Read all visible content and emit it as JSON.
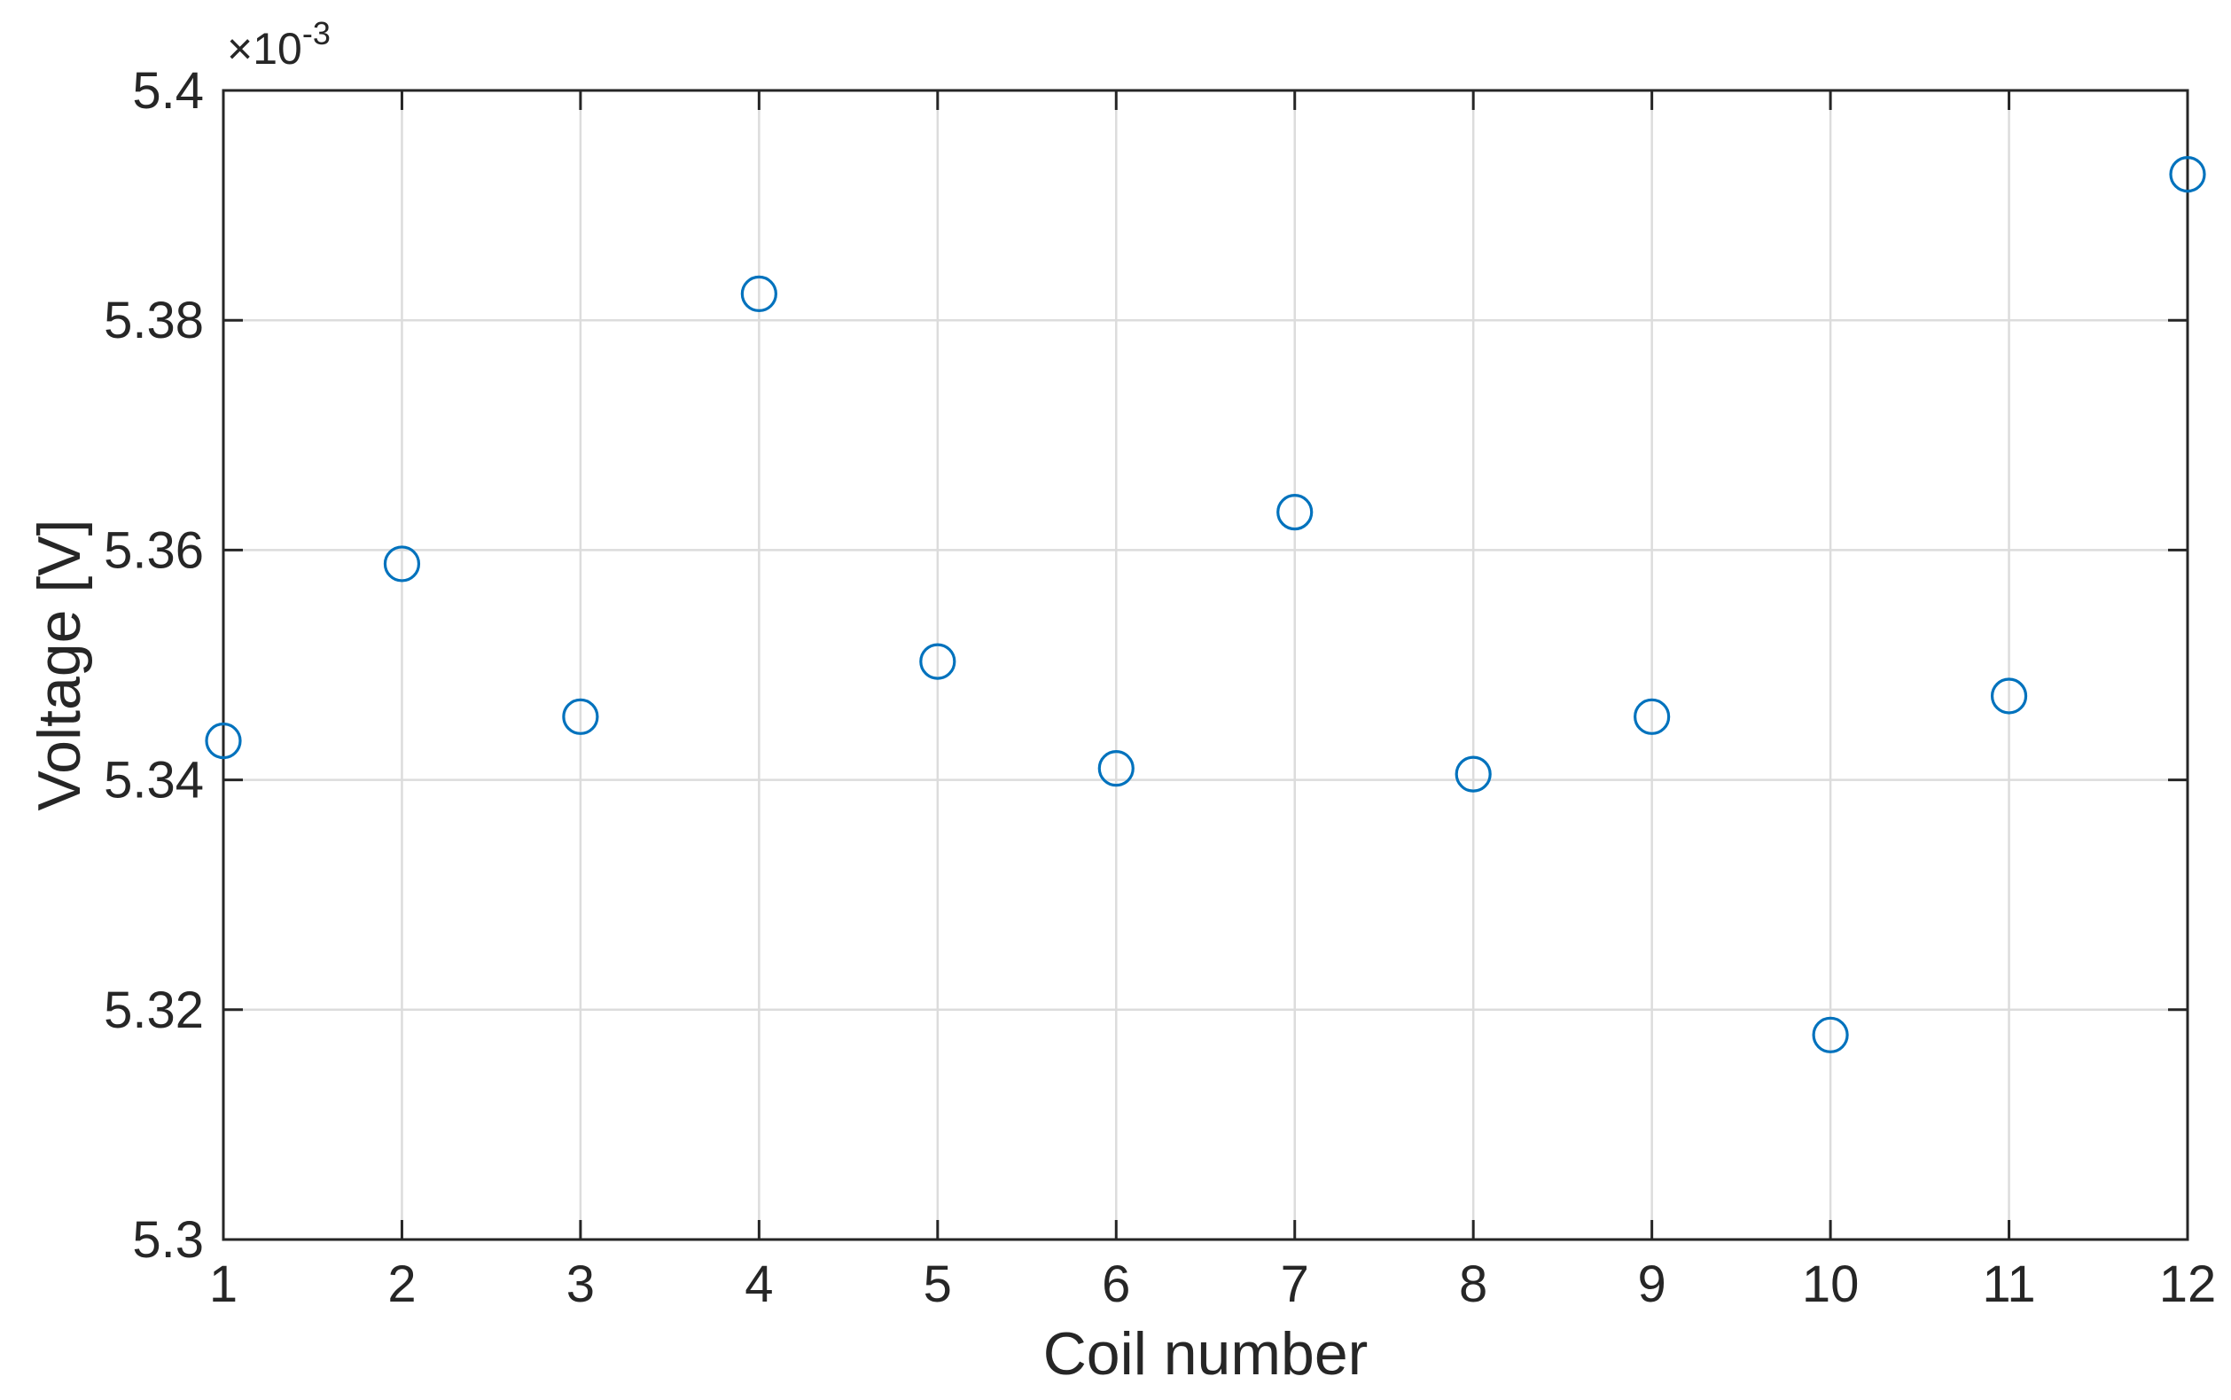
{
  "chart_data": {
    "type": "scatter",
    "xlabel": "Coil number",
    "ylabel": "Voltage [V]",
    "y_exponent_label": "×10",
    "y_exponent_power": "-3",
    "xlim": [
      1,
      12
    ],
    "ylim": [
      5.3,
      5.4
    ],
    "xticks": [
      1,
      2,
      3,
      4,
      5,
      6,
      7,
      8,
      9,
      10,
      11,
      12
    ],
    "xtick_labels": [
      "1",
      "2",
      "3",
      "4",
      "5",
      "6",
      "7",
      "8",
      "9",
      "10",
      "11",
      "12"
    ],
    "yticks": [
      5.3,
      5.32,
      5.34,
      5.36,
      5.38,
      5.4
    ],
    "ytick_labels": [
      "5.3",
      "5.32",
      "5.34",
      "5.36",
      "5.38",
      "5.4"
    ],
    "grid": true,
    "marker": "circle-open",
    "marker_color": "#0072BD",
    "series": [
      {
        "x": [
          1,
          2,
          3,
          4,
          5,
          6,
          7,
          8,
          9,
          10,
          11,
          12
        ],
        "y": [
          5.3434,
          5.3588,
          5.3455,
          5.3823,
          5.3503,
          5.341,
          5.3633,
          5.3405,
          5.3455,
          5.3178,
          5.3473,
          5.3927
        ]
      }
    ]
  }
}
